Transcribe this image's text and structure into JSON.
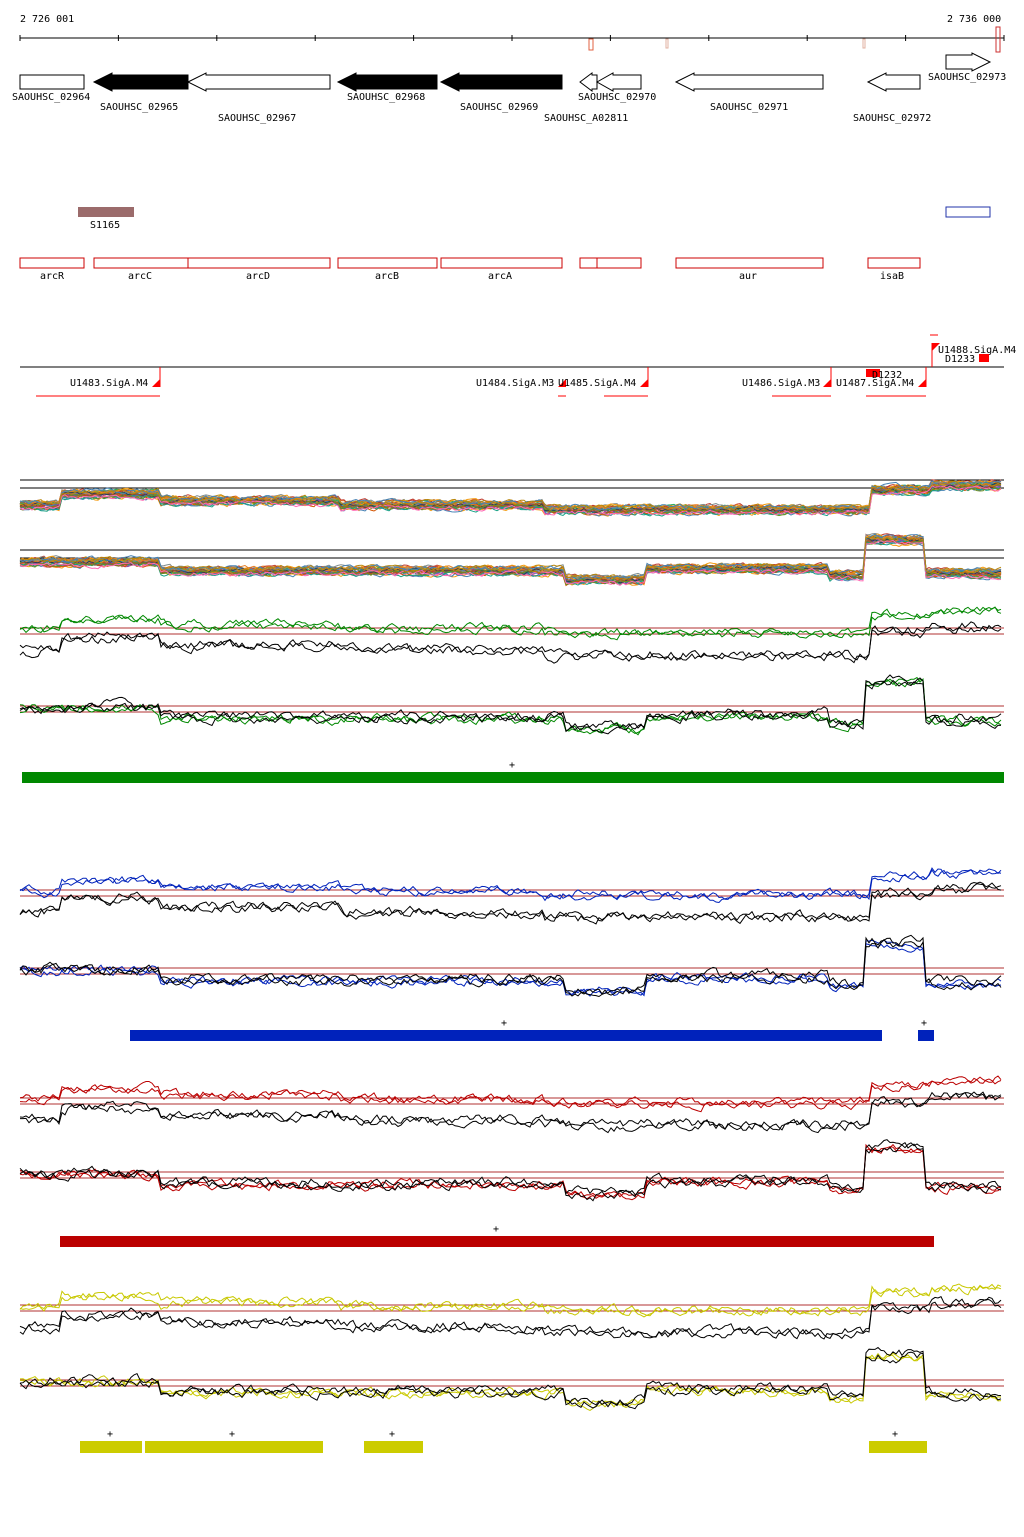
{
  "coords": {
    "start": "2 726 001",
    "end": "2 736 000"
  },
  "colors": {
    "gene_fill_dark": "#000000",
    "gene_outline": "#000000",
    "region_outline": "#cc0000",
    "srna": "#9b6b6b",
    "tss": "#ff0000",
    "ref_line": "#b03030",
    "cond_green": "#008800",
    "cond_blue": "#0022bb",
    "cond_red": "#bb0000",
    "cond_yellow": "#cccc00"
  },
  "genes": [
    {
      "label": "SAOUHSC_02964",
      "filled": false,
      "dir": "+"
    },
    {
      "label": "SAOUHSC_02965",
      "filled": true,
      "dir": "-"
    },
    {
      "label": "SAOUHSC_02967",
      "filled": false,
      "dir": "-"
    },
    {
      "label": "SAOUHSC_02968",
      "filled": true,
      "dir": "-"
    },
    {
      "label": "SAOUHSC_02969",
      "filled": true,
      "dir": "-"
    },
    {
      "label": "SAOUHSC_A02811",
      "filled": false,
      "dir": "-"
    },
    {
      "label": "SAOUHSC_02970",
      "filled": false,
      "dir": "-"
    },
    {
      "label": "SAOUHSC_02971",
      "filled": false,
      "dir": "-"
    },
    {
      "label": "SAOUHSC_02972",
      "filled": false,
      "dir": "-"
    },
    {
      "label": "SAOUHSC_02973",
      "filled": false,
      "dir": "+"
    }
  ],
  "srna_label": "S1165",
  "operons": [
    "arcR",
    "arcC",
    "arcD",
    "arcB",
    "arcA",
    "aur",
    "isaB"
  ],
  "tss": [
    {
      "label": "U1483.SigA.M4"
    },
    {
      "label": "U1484.SigA.M3"
    },
    {
      "label": "U1485.SigA.M4"
    },
    {
      "label": "U1486.SigA.M3"
    },
    {
      "label": "U1487.SigA.M4"
    },
    {
      "label": "U1488.SigA.M4"
    },
    {
      "label": "D1232"
    },
    {
      "label": "D1233"
    }
  ],
  "strand_marks": [
    "+",
    "+",
    "+",
    "+",
    "+",
    "+",
    "+",
    "+",
    "+"
  ]
}
